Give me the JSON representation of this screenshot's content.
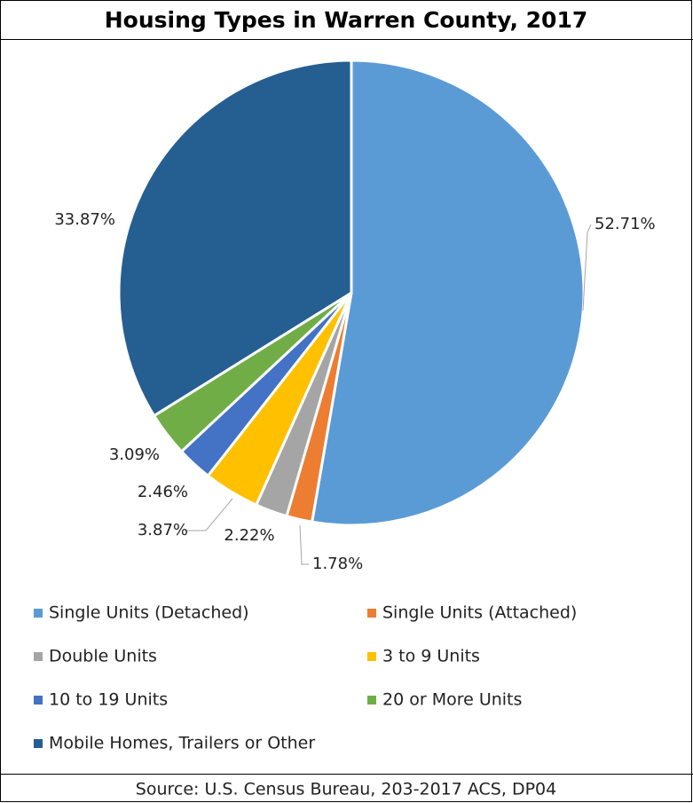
{
  "chart_data": {
    "type": "pie",
    "title": "Housing Types in Warren County, 2017",
    "categories": [
      "Single Units (Detached)",
      "Single Units (Attached)",
      "Double Units",
      "3 to 9 Units",
      "10 to 19 Units",
      "20 or More Units",
      "Mobile Homes, Trailers or Other"
    ],
    "values": [
      52.71,
      1.78,
      2.22,
      3.87,
      2.46,
      3.09,
      33.87
    ],
    "value_labels": [
      "52.71%",
      "1.78%",
      "2.22%",
      "3.87%",
      "2.46%",
      "3.09%",
      "33.87%"
    ],
    "colors": [
      "#5b9bd5",
      "#ed7d31",
      "#a5a5a5",
      "#ffc000",
      "#4472c4",
      "#70ad47",
      "#255e91"
    ],
    "legend": "bottom",
    "source": "Source:  U.S. Census Bureau, 203-2017 ACS, DP04"
  }
}
